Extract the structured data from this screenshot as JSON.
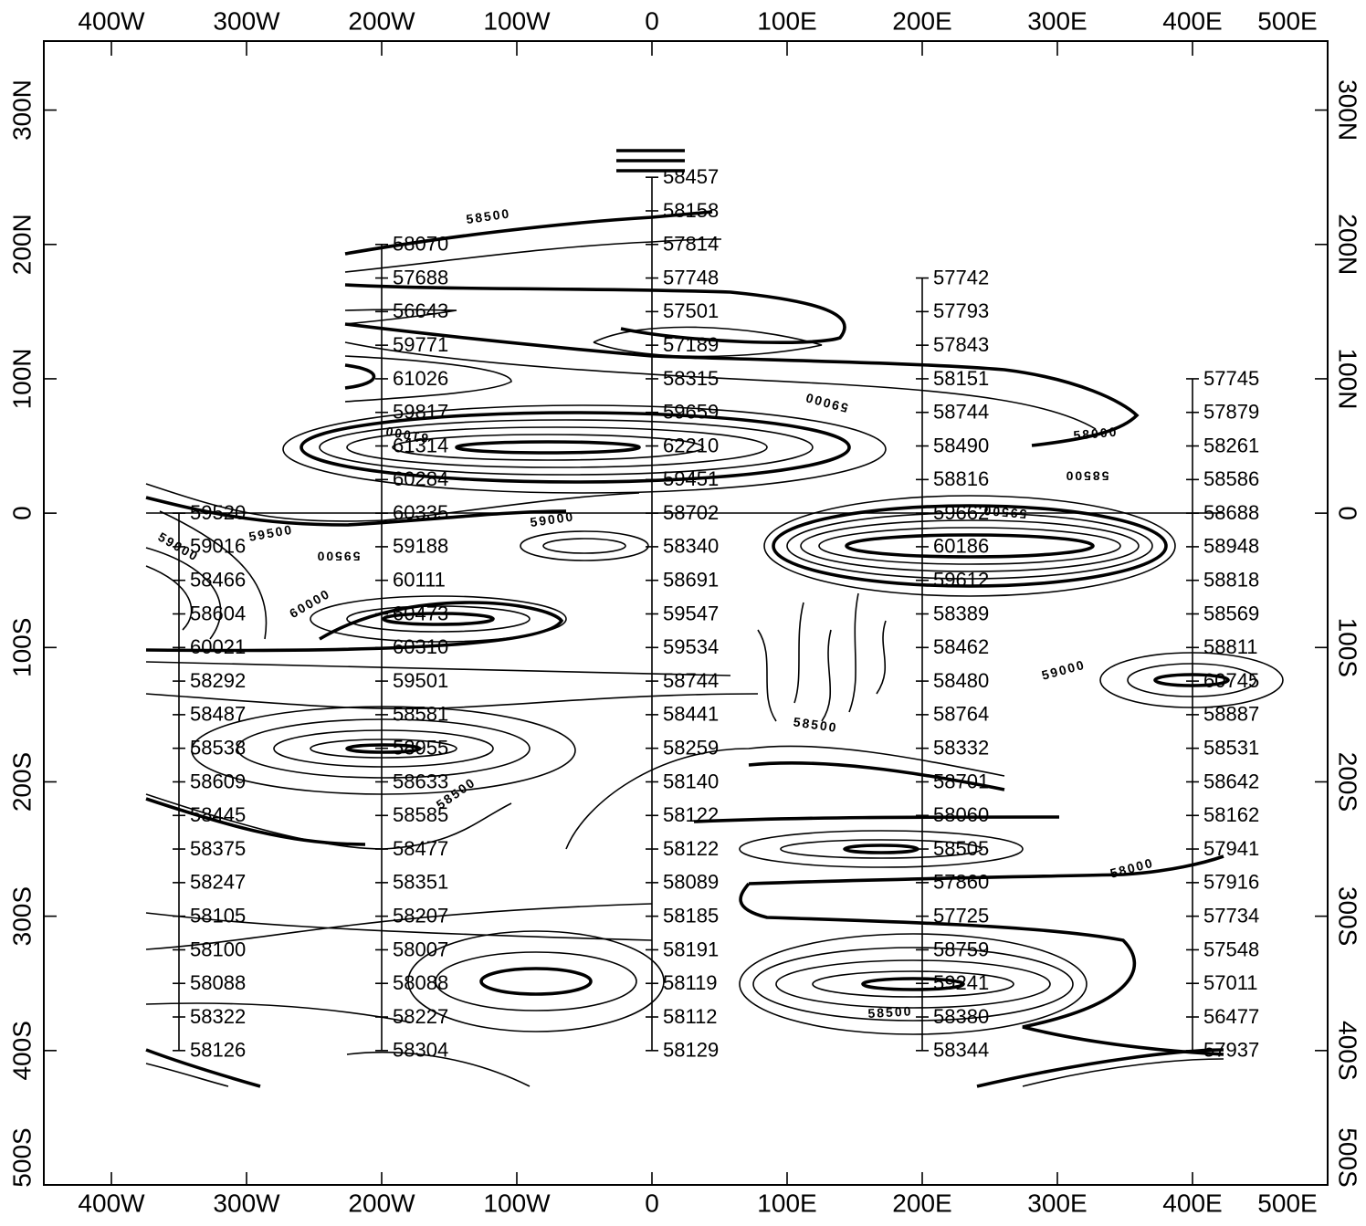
{
  "axes": {
    "xlim": [
      -450,
      500
    ],
    "ylim": [
      -500,
      350
    ],
    "xticks": [
      {
        "value": -400,
        "label": "400W"
      },
      {
        "value": -300,
        "label": "300W"
      },
      {
        "value": -200,
        "label": "200W"
      },
      {
        "value": -100,
        "label": "100W"
      },
      0,
      {
        "value": 100,
        "label": "100E"
      },
      {
        "value": 200,
        "label": "200E"
      },
      {
        "value": 300,
        "label": "300E"
      },
      {
        "value": 400,
        "label": "400E"
      },
      {
        "value": 500,
        "label": "500E"
      }
    ],
    "yticks": [
      {
        "value": 300,
        "label": "300N"
      },
      {
        "value": 200,
        "label": "200N"
      },
      {
        "value": 100,
        "label": "100N"
      },
      0,
      {
        "value": -100,
        "label": "100S"
      },
      {
        "value": -200,
        "label": "200S"
      },
      {
        "value": -300,
        "label": "300S"
      },
      {
        "value": -400,
        "label": "400S"
      },
      {
        "value": -500,
        "label": "500S"
      }
    ]
  },
  "profiles": [
    {
      "x": -350,
      "y": [
        0,
        -25,
        -50,
        -75,
        -100,
        -125,
        -150,
        -175,
        -200,
        -225,
        -250,
        -275,
        -300,
        -325,
        -350,
        -375,
        -400
      ],
      "values": [
        59520,
        59016,
        58466,
        58604,
        60021,
        58292,
        58487,
        58538,
        58609,
        58445,
        58375,
        58247,
        58105,
        58100,
        58088,
        58322,
        58126
      ]
    },
    {
      "x": -200,
      "y": [
        200,
        175,
        150,
        125,
        100,
        75,
        50,
        25,
        0,
        -25,
        -50,
        -75,
        -100,
        -125,
        -150,
        -175,
        -200,
        -225,
        -250,
        -275,
        -300,
        -325,
        -350,
        -375,
        -400
      ],
      "values": [
        58070,
        57688,
        56643,
        59771,
        61026,
        59817,
        61314,
        60284,
        60335,
        59188,
        60111,
        60473,
        60310,
        59501,
        58581,
        58955,
        58633,
        58585,
        58477,
        58351,
        58207,
        58007,
        58088,
        58227,
        58304
      ]
    },
    {
      "x": 0,
      "y": [
        250,
        225,
        200,
        175,
        150,
        125,
        100,
        75,
        50,
        25,
        0,
        -25,
        -50,
        -75,
        -100,
        -125,
        -150,
        -175,
        -200,
        -225,
        -250,
        -275,
        -300,
        -325,
        -350,
        -375,
        -400
      ],
      "values": [
        58457,
        58158,
        57814,
        57748,
        57501,
        57189,
        58315,
        59659,
        62210,
        59451,
        58702,
        58340,
        58691,
        59547,
        59534,
        58744,
        58441,
        58259,
        58140,
        58122,
        58122,
        58089,
        58185,
        58191,
        58119,
        58112,
        58129
      ]
    },
    {
      "x": 200,
      "y": [
        175,
        150,
        125,
        100,
        75,
        50,
        25,
        0,
        -25,
        -50,
        -75,
        -100,
        -125,
        -150,
        -175,
        -200,
        -225,
        -250,
        -275,
        -300,
        -325,
        -350,
        -375,
        -400
      ],
      "values": [
        57742,
        57793,
        57843,
        58151,
        58744,
        58490,
        58816,
        59662,
        60186,
        59612,
        58389,
        58462,
        58480,
        58764,
        58332,
        58701,
        58060,
        58505,
        57860,
        57725,
        58759,
        59241,
        58380,
        58344
      ]
    },
    {
      "x": 400,
      "y": [
        100,
        75,
        50,
        25,
        0,
        -25,
        -50,
        -75,
        -100,
        -125,
        -150,
        -175,
        -200,
        -225,
        -250,
        -275,
        -300,
        -325,
        -350,
        -375,
        -400
      ],
      "values": [
        57745,
        57879,
        58261,
        58586,
        58688,
        58948,
        58818,
        58569,
        58811,
        60745,
        58887,
        58531,
        58642,
        58162,
        57941,
        57916,
        57734,
        57548,
        57011,
        56477,
        57937
      ]
    }
  ],
  "contour_labels": [
    58500,
    59500,
    59000,
    59500,
    60000,
    59000,
    58000,
    58500,
    59500,
    59000,
    58500,
    58500,
    58000,
    58500,
    59000,
    61000
  ]
}
